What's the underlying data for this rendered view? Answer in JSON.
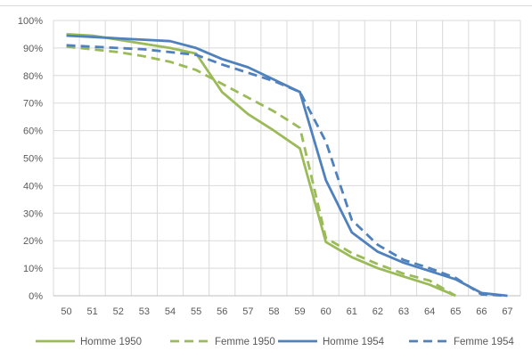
{
  "chart_data": {
    "type": "line",
    "title": "",
    "xlabel": "",
    "ylabel": "",
    "x": [
      50,
      51,
      52,
      53,
      54,
      55,
      56,
      57,
      58,
      59,
      60,
      61,
      62,
      63,
      64,
      65,
      66,
      67
    ],
    "x_tick_labels": [
      "50",
      "51",
      "52",
      "53",
      "54",
      "55",
      "56",
      "57",
      "58",
      "59",
      "60",
      "61",
      "62",
      "63",
      "64",
      "65",
      "66",
      "67"
    ],
    "ylim": [
      0,
      100
    ],
    "y_ticks": [
      0,
      10,
      20,
      30,
      40,
      50,
      60,
      70,
      80,
      90,
      100
    ],
    "y_tick_labels": [
      "0%",
      "10%",
      "20%",
      "30%",
      "40%",
      "50%",
      "60%",
      "70%",
      "80%",
      "90%",
      "100%"
    ],
    "grid": true,
    "legend_position": "bottom",
    "series": [
      {
        "name": "Homme 1950",
        "color": "#9BBB59",
        "dash": "solid",
        "values": [
          95,
          94.5,
          93,
          91.5,
          90,
          88,
          74,
          66,
          60,
          53.5,
          19.5,
          14,
          10,
          7,
          4,
          0,
          null,
          null
        ]
      },
      {
        "name": "Femme 1950",
        "color": "#9BBB59",
        "dash": "dashed",
        "values": [
          90.5,
          89.5,
          88.5,
          87,
          85,
          82,
          77,
          72,
          67,
          61,
          21,
          15.5,
          11.5,
          8,
          5.5,
          0,
          null,
          null
        ]
      },
      {
        "name": "Homme 1954",
        "color": "#4F81BD",
        "dash": "solid",
        "values": [
          94.5,
          94,
          93.5,
          93,
          92.5,
          90,
          86,
          83,
          78.5,
          74,
          42,
          23,
          16,
          12,
          9,
          6,
          1,
          0
        ]
      },
      {
        "name": "Femme 1954",
        "color": "#4F81BD",
        "dash": "dashed",
        "values": [
          91,
          90.5,
          90,
          89.5,
          88.5,
          87.5,
          84,
          81,
          78,
          74,
          56,
          27.5,
          18.5,
          13,
          10,
          6.5,
          0.5,
          0
        ]
      }
    ]
  }
}
